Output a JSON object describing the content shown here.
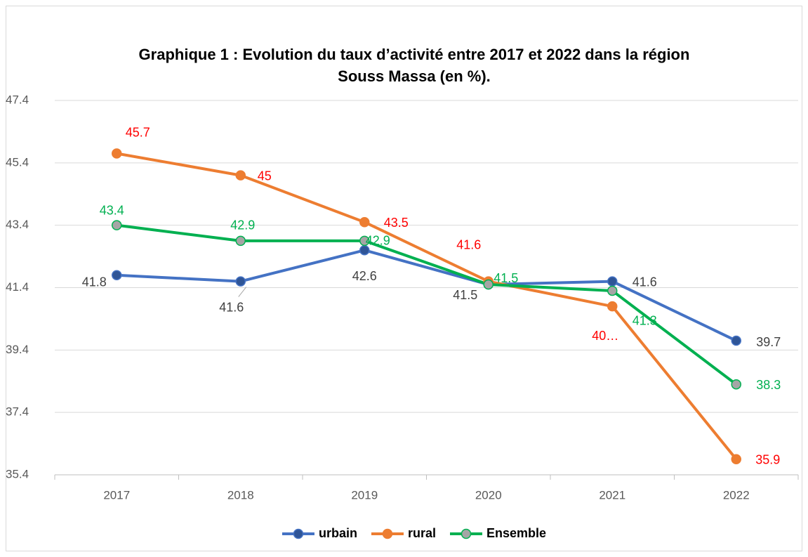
{
  "chart_data": {
    "type": "line",
    "title": "Graphique 1 : Evolution du taux d’activité entre 2017 et 2022 dans la région Souss Massa (en %).",
    "categories": [
      "2017",
      "2018",
      "2019",
      "2020",
      "2021",
      "2022"
    ],
    "series": [
      {
        "name": "urbain",
        "color": "#4472c4",
        "marker_color": "#2f5597",
        "label_color": "#404040",
        "values": [
          41.8,
          41.6,
          42.6,
          41.5,
          41.6,
          39.7
        ]
      },
      {
        "name": "rural",
        "color": "#ed7d31",
        "marker_color": "#ed7d31",
        "label_color": "#ff0000",
        "values": [
          45.7,
          45,
          43.5,
          41.6,
          40.8,
          35.9
        ],
        "value_labels": [
          "45.7",
          "45",
          "43.5",
          "41.6",
          "40…",
          "35.9"
        ]
      },
      {
        "name": "Ensemble",
        "color": "#00b050",
        "marker_color": "#a5a5a5",
        "label_color": "#00b050",
        "values": [
          43.4,
          42.9,
          42.9,
          41.5,
          41.3,
          38.3
        ]
      }
    ],
    "ylim": [
      35.4,
      47.4
    ],
    "yticks": [
      35.4,
      37.4,
      39.4,
      41.4,
      43.4,
      45.4,
      47.4
    ],
    "grid": true,
    "legend": "bottom"
  }
}
